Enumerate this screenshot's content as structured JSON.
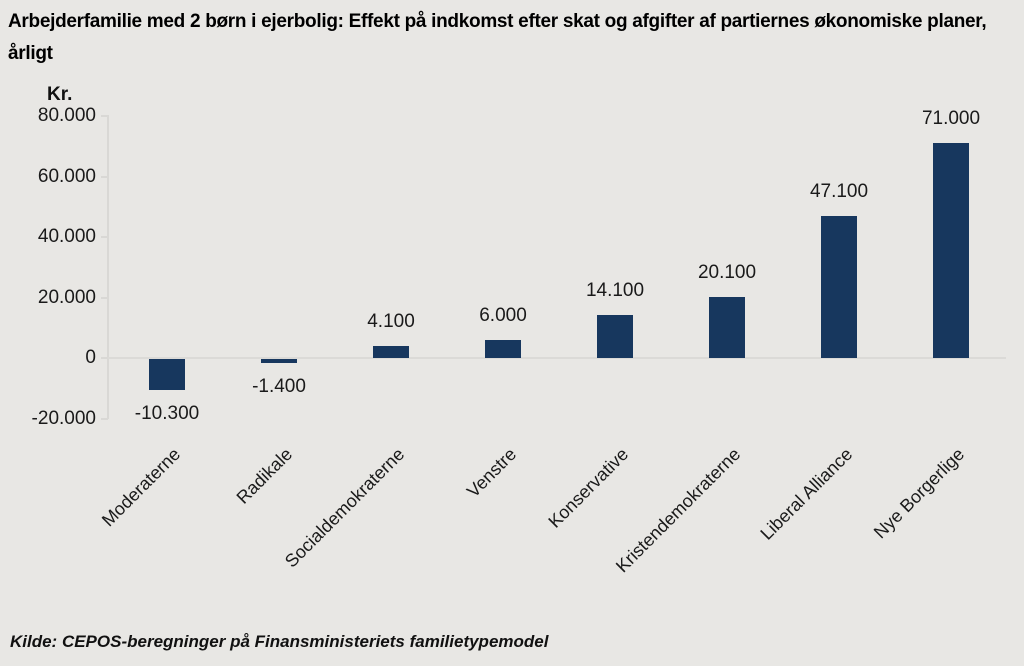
{
  "chart_data": {
    "type": "bar",
    "title": "Arbejderfamilie med 2 børn i ejerbolig: Effekt på indkomst efter skat og afgifter af partiernes økonomiske planer, årligt",
    "y_axis_unit": "Kr.",
    "categories": [
      "Moderaterne",
      "Radikale",
      "Socialdemokraterne",
      "Venstre",
      "Konservative",
      "Kristendemokraterne",
      "Liberal Alliance",
      "Nye Borgerlige"
    ],
    "values": [
      -10300,
      -1400,
      4100,
      6000,
      14100,
      20100,
      47100,
      71000
    ],
    "value_labels": [
      "-10.300",
      "-1.400",
      "4.100",
      "6.000",
      "14.100",
      "20.100",
      "47.100",
      "71.000"
    ],
    "y_ticks": [
      {
        "value": 80000,
        "label": "80.000"
      },
      {
        "value": 60000,
        "label": "60.000"
      },
      {
        "value": 40000,
        "label": "40.000"
      },
      {
        "value": 20000,
        "label": "20.000"
      },
      {
        "value": 0,
        "label": "0"
      },
      {
        "value": -20000,
        "label": "-20.000"
      }
    ],
    "ylim": [
      -20000,
      80000
    ],
    "xlabel": "",
    "ylabel": "Kr.",
    "grid": "zero-line-only",
    "legend": "none",
    "bar_color": "#17375e",
    "source": "Kilde: CEPOS-beregninger på Finansministeriets familietypemodel"
  },
  "colors": {
    "background": "#e8e7e4",
    "bar": "#17375e",
    "axis": "#d9d8d5",
    "text": "#1a1a1a"
  }
}
